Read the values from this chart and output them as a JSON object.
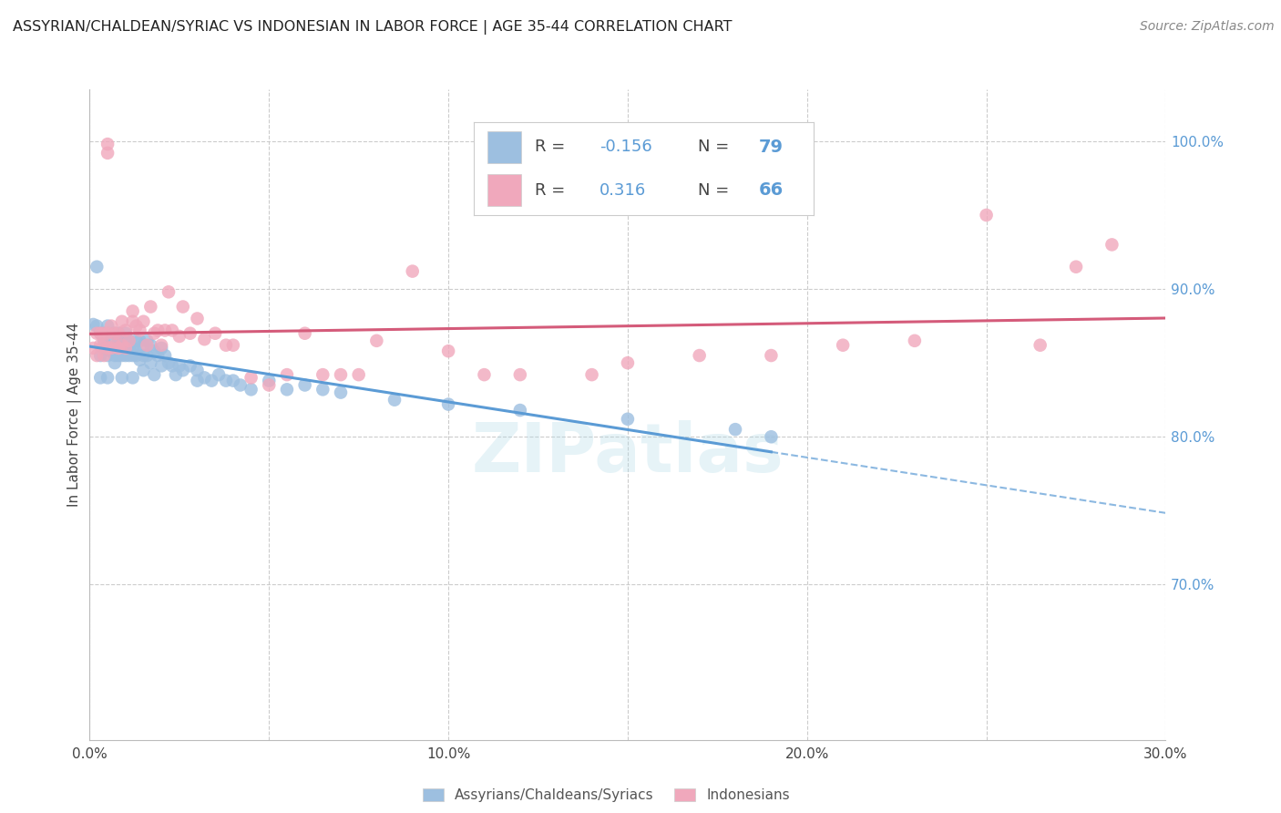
{
  "title": "ASSYRIAN/CHALDEAN/SYRIAC VS INDONESIAN IN LABOR FORCE | AGE 35-44 CORRELATION CHART",
  "source": "Source: ZipAtlas.com",
  "ylabel": "In Labor Force | Age 35-44",
  "xlim": [
    0.0,
    0.3
  ],
  "ylim": [
    0.595,
    1.035
  ],
  "xticks": [
    0.0,
    0.05,
    0.1,
    0.15,
    0.2,
    0.25,
    0.3
  ],
  "xtick_labels": [
    "0.0%",
    "",
    "10.0%",
    "",
    "20.0%",
    "",
    "30.0%"
  ],
  "yticks_right": [
    0.7,
    0.8,
    0.9,
    1.0
  ],
  "ytick_right_labels": [
    "70.0%",
    "80.0%",
    "90.0%",
    "100.0%"
  ],
  "R_blue": -0.156,
  "N_blue": 79,
  "R_pink": 0.316,
  "N_pink": 66,
  "blue_color": "#9dbfe0",
  "pink_color": "#f0a8bc",
  "blue_line_color": "#5b9bd5",
  "pink_line_color": "#d45b7a",
  "legend_label_blue": "Assyrians/Chaldeans/Syriacs",
  "legend_label_pink": "Indonesians",
  "watermark": "ZIPatlas",
  "blue_scatter_x": [
    0.001,
    0.002,
    0.002,
    0.003,
    0.003,
    0.003,
    0.004,
    0.004,
    0.004,
    0.005,
    0.005,
    0.005,
    0.005,
    0.006,
    0.006,
    0.007,
    0.007,
    0.007,
    0.007,
    0.008,
    0.008,
    0.008,
    0.008,
    0.009,
    0.009,
    0.009,
    0.01,
    0.01,
    0.01,
    0.011,
    0.011,
    0.011,
    0.012,
    0.012,
    0.012,
    0.013,
    0.013,
    0.013,
    0.014,
    0.014,
    0.015,
    0.015,
    0.015,
    0.016,
    0.016,
    0.017,
    0.017,
    0.018,
    0.018,
    0.019,
    0.02,
    0.02,
    0.021,
    0.022,
    0.023,
    0.024,
    0.025,
    0.026,
    0.028,
    0.03,
    0.03,
    0.032,
    0.034,
    0.036,
    0.038,
    0.04,
    0.042,
    0.045,
    0.05,
    0.055,
    0.06,
    0.065,
    0.07,
    0.085,
    0.1,
    0.12,
    0.15,
    0.18,
    0.19
  ],
  "blue_scatter_y": [
    0.876,
    0.915,
    0.875,
    0.84,
    0.87,
    0.855,
    0.865,
    0.86,
    0.87,
    0.86,
    0.875,
    0.855,
    0.84,
    0.865,
    0.858,
    0.86,
    0.85,
    0.87,
    0.855,
    0.865,
    0.855,
    0.87,
    0.86,
    0.86,
    0.855,
    0.84,
    0.865,
    0.855,
    0.87,
    0.865,
    0.86,
    0.855,
    0.86,
    0.855,
    0.84,
    0.858,
    0.865,
    0.855,
    0.865,
    0.852,
    0.862,
    0.855,
    0.845,
    0.865,
    0.855,
    0.862,
    0.85,
    0.858,
    0.842,
    0.855,
    0.86,
    0.848,
    0.855,
    0.85,
    0.848,
    0.842,
    0.848,
    0.845,
    0.848,
    0.845,
    0.838,
    0.84,
    0.838,
    0.842,
    0.838,
    0.838,
    0.835,
    0.832,
    0.838,
    0.832,
    0.835,
    0.832,
    0.83,
    0.825,
    0.822,
    0.818,
    0.812,
    0.805,
    0.8
  ],
  "pink_scatter_x": [
    0.001,
    0.002,
    0.002,
    0.003,
    0.003,
    0.004,
    0.004,
    0.004,
    0.005,
    0.005,
    0.005,
    0.005,
    0.006,
    0.006,
    0.007,
    0.007,
    0.008,
    0.008,
    0.009,
    0.009,
    0.01,
    0.01,
    0.011,
    0.012,
    0.012,
    0.013,
    0.014,
    0.015,
    0.016,
    0.017,
    0.018,
    0.019,
    0.02,
    0.021,
    0.022,
    0.023,
    0.025,
    0.026,
    0.028,
    0.03,
    0.032,
    0.035,
    0.038,
    0.04,
    0.045,
    0.05,
    0.055,
    0.06,
    0.065,
    0.07,
    0.075,
    0.08,
    0.09,
    0.1,
    0.11,
    0.12,
    0.14,
    0.15,
    0.17,
    0.19,
    0.21,
    0.23,
    0.25,
    0.265,
    0.275,
    0.285
  ],
  "pink_scatter_y": [
    0.86,
    0.87,
    0.855,
    0.862,
    0.87,
    0.862,
    0.87,
    0.855,
    0.998,
    0.992,
    0.87,
    0.86,
    0.86,
    0.875,
    0.862,
    0.87,
    0.87,
    0.86,
    0.862,
    0.878,
    0.872,
    0.86,
    0.865,
    0.885,
    0.878,
    0.875,
    0.872,
    0.878,
    0.862,
    0.888,
    0.87,
    0.872,
    0.862,
    0.872,
    0.898,
    0.872,
    0.868,
    0.888,
    0.87,
    0.88,
    0.866,
    0.87,
    0.862,
    0.862,
    0.84,
    0.835,
    0.842,
    0.87,
    0.842,
    0.842,
    0.842,
    0.865,
    0.912,
    0.858,
    0.842,
    0.842,
    0.842,
    0.85,
    0.855,
    0.855,
    0.862,
    0.865,
    0.95,
    0.862,
    0.915,
    0.93
  ]
}
